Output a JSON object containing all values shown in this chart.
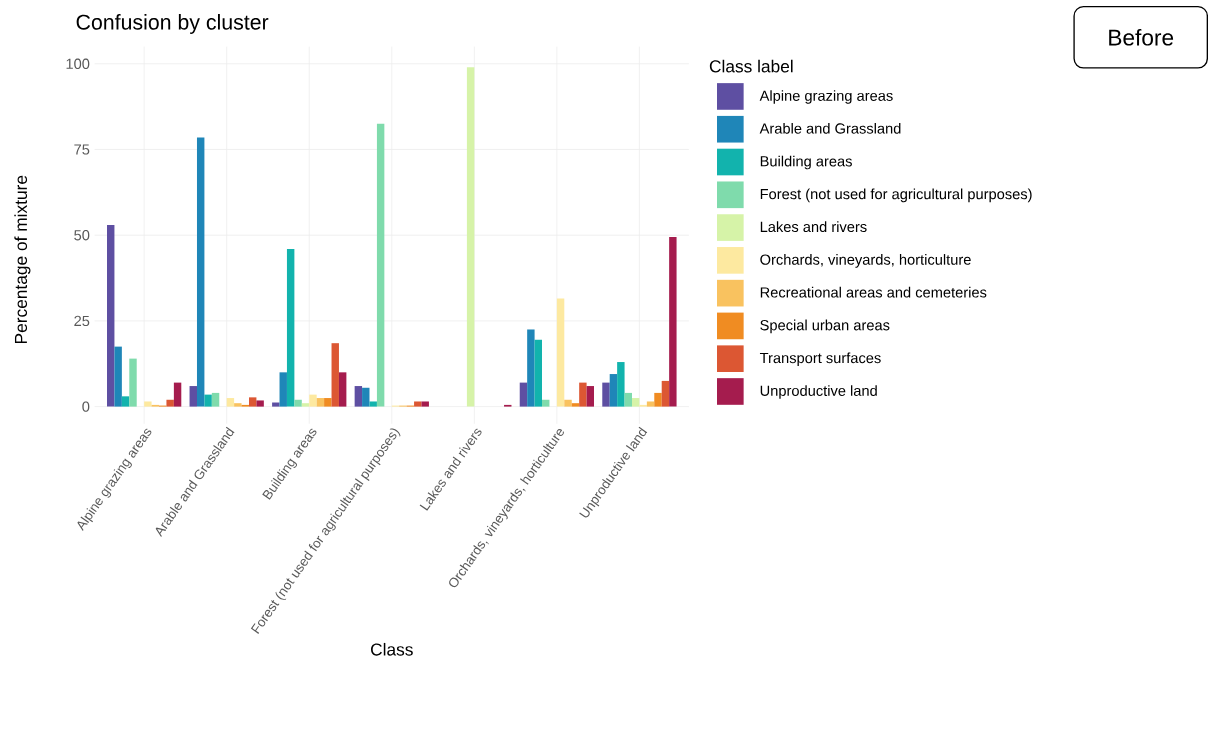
{
  "chart_data": {
    "type": "bar",
    "title": "Confusion by cluster",
    "xlabel": "Class",
    "ylabel": "Percentage of mixture",
    "legend_title": "Class label",
    "categories": [
      "Alpine grazing areas",
      "Arable and Grassland",
      "Building areas",
      "Forest (not used for agricultural purposes)",
      "Lakes and rivers",
      "Orchards, vineyards, horticulture",
      "Unproductive land"
    ],
    "series": [
      {
        "name": "Alpine grazing areas",
        "color": "#5e4fa2",
        "values": [
          53,
          6,
          1.2,
          6,
          0,
          7,
          7
        ]
      },
      {
        "name": "Arable and Grassland",
        "color": "#1f86b8",
        "values": [
          17.5,
          78.5,
          10,
          5.5,
          0,
          22.5,
          9.5
        ]
      },
      {
        "name": "Building areas",
        "color": "#12b3ad",
        "values": [
          3,
          3.5,
          46,
          1.5,
          0,
          19.5,
          13
        ]
      },
      {
        "name": "Forest (not used for agricultural purposes)",
        "color": "#7fdbac",
        "values": [
          14,
          4,
          2,
          82.5,
          0,
          2,
          4
        ]
      },
      {
        "name": "Lakes and rivers",
        "color": "#d6f3a8",
        "values": [
          null,
          null,
          1,
          null,
          99,
          null,
          2.5
        ]
      },
      {
        "name": "Orchards, vineyards, horticulture",
        "color": "#fde9a0",
        "values": [
          1.5,
          2.5,
          3.5,
          0.3,
          0,
          31.5,
          0.5
        ]
      },
      {
        "name": "Recreational areas and cemeteries",
        "color": "#f9c25f",
        "values": [
          0.5,
          1,
          2.5,
          0.3,
          0,
          2,
          1.5
        ]
      },
      {
        "name": "Special urban areas",
        "color": "#f08c22",
        "values": [
          0.3,
          0.5,
          2.5,
          0.3,
          0,
          1,
          4
        ]
      },
      {
        "name": "Transport surfaces",
        "color": "#dc5733",
        "values": [
          2,
          2.7,
          18.5,
          1.5,
          0,
          7,
          7.5
        ]
      },
      {
        "name": "Unproductive land",
        "color": "#a51c4e",
        "values": [
          7,
          1.8,
          10,
          1.5,
          0.5,
          6,
          49.5
        ]
      }
    ],
    "ylim": [
      -5,
      105
    ],
    "yticks": [
      0,
      25,
      50,
      75,
      100
    ],
    "grid": true,
    "legend": "right",
    "annotations": [
      "Before"
    ]
  }
}
